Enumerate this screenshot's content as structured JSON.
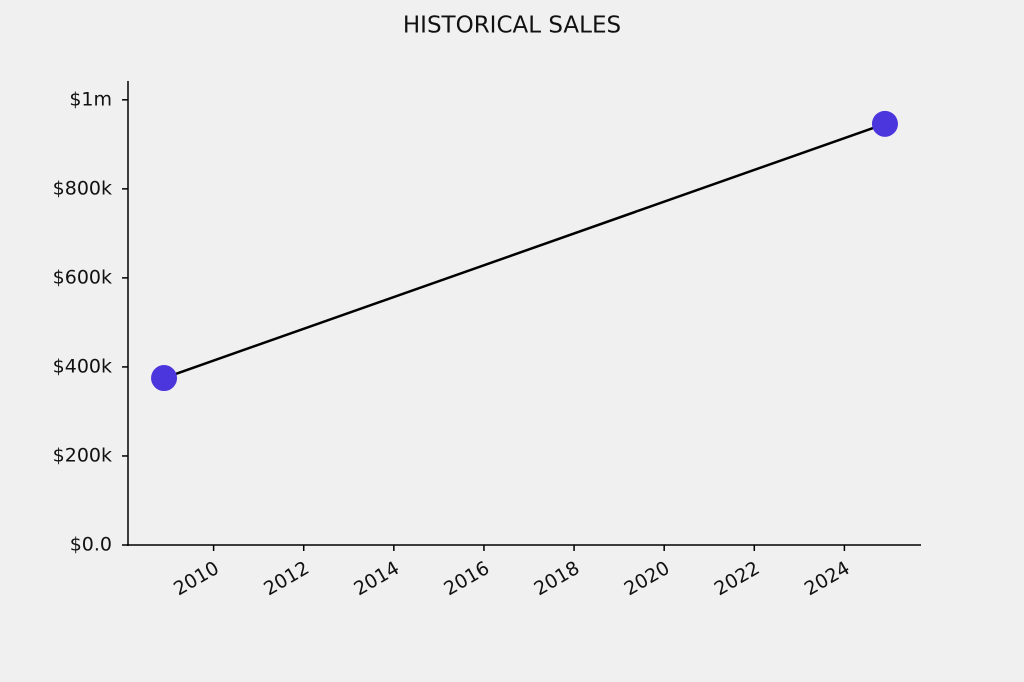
{
  "chart_data": {
    "type": "line",
    "title": "HISTORICAL SALES",
    "x": [
      2008.9,
      2024.9
    ],
    "values": [
      375000,
      946000
    ],
    "color": "#4b35dc",
    "line_color": "#000000",
    "xlim": [
      2008.1,
      2025.7
    ],
    "xticks": [
      2010,
      2012,
      2014,
      2016,
      2018,
      2020,
      2022,
      2024
    ],
    "ylim": [
      0,
      1040000
    ],
    "yticks": [
      {
        "value": 0,
        "label": "$0.0"
      },
      {
        "value": 200000,
        "label": "$200k"
      },
      {
        "value": 400000,
        "label": "$400k"
      },
      {
        "value": 600000,
        "label": "$600k"
      },
      {
        "value": 800000,
        "label": "$800k"
      },
      {
        "value": 1000000,
        "label": "$1m"
      }
    ],
    "grid": false
  }
}
